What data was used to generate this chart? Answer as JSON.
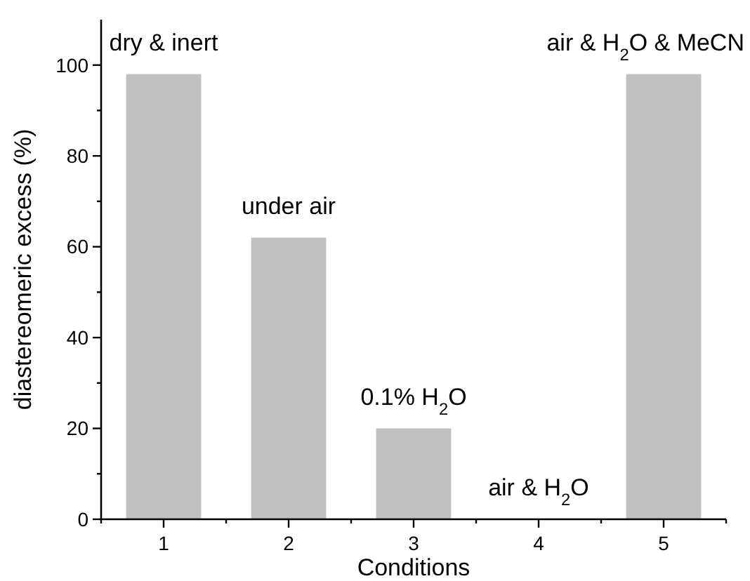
{
  "chart_data": {
    "type": "bar",
    "xlabel": "Conditions",
    "ylabel": "diastereomeric excess (%)",
    "categories": [
      "1",
      "2",
      "3",
      "4",
      "5"
    ],
    "values": [
      98,
      62,
      20,
      0,
      98
    ],
    "color": "#c0c0c0",
    "ylim": [
      0,
      110
    ],
    "yticks": [
      0,
      {
        "value": 10,
        "label": null
      },
      20,
      {
        "value": 30,
        "label": null
      },
      40,
      {
        "value": 50,
        "label": null
      },
      60,
      {
        "value": 70,
        "label": null
      },
      80,
      {
        "value": 90,
        "label": null
      },
      100
    ],
    "grid": false,
    "annotations": [
      {
        "text": "dry & inert",
        "x": "1",
        "y": 98
      },
      {
        "text": "under air",
        "x": "2",
        "y": 62
      },
      {
        "text": "0.1% H$_{2}$O",
        "x": "3",
        "y": 20
      },
      {
        "text": "air & H$_{2}$O",
        "x": "4",
        "y": 0
      },
      {
        "text": "air & H$_{2}$O & MeCN",
        "x": "5",
        "y": 98
      }
    ]
  }
}
